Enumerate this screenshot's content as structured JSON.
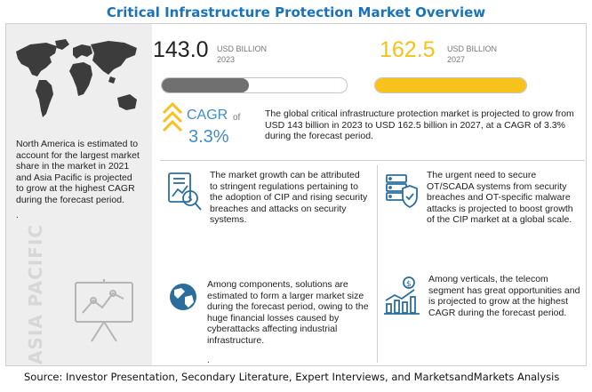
{
  "title": "Critical Infrastructure Protection Market Overview",
  "region": {
    "label": "ASIA PACIFIC",
    "text": "North America is estimated to account for the largest market share in the market in 2021 and Asia Pacific is projected to grow at the highest CAGR during the forecast period.",
    "trailing_dot": "."
  },
  "market": {
    "value_2023": "143.0",
    "unit_2023": "USD BILLION",
    "year_2023": "2023",
    "fill_2023": 0.47,
    "value_2027": "162.5",
    "unit_2027": "USD BILLION",
    "year_2027": "2027",
    "fill_2027": 1.0,
    "cagr_label": "CAGR",
    "cagr_of": "of",
    "cagr_value": "3.3%",
    "summary": "The global critical infrastructure protection market is projected to grow from USD 143 billion in 2023 to USD 162.5 billion in 2027, at a CAGR of 3.3% during the forecast period."
  },
  "insights": {
    "growth": "The market growth can be attributed to stringent regulations pertaining to the adoption of CIP and rising security breaches and attacks on security systems.",
    "security": "The urgent need to secure OT/SCADA systems from security breaches and OT-specific malware attacks is projected to boost growth of the CIP market at a global scale.",
    "components": "Among components, solutions are estimated to form a larger market size during the forecast period, owing to the huge financial losses caused by cyberattacks affecting industrial infrastructure.",
    "components_dot": ".",
    "verticals": "Among verticals, the telecom segment has great opportunities and is projected to grow at the highest CAGR during the forecast period."
  },
  "icons": {
    "map": "world-map-icon",
    "chart": "presentation-chart-icon",
    "growth": "growth-analysis-icon",
    "security": "security-servers-icon",
    "globe": "globe-icon",
    "stats": "bar-chart-growth-icon"
  },
  "colors": {
    "title": "#1a73b8",
    "accent_yellow": "#f8c21c",
    "accent_blue": "#3d8ec9",
    "bar_gray": "#707070"
  },
  "source": "Source: Investor Presentation, Secondary Literature, Expert Interviews, and MarketsandMarkets Analysis"
}
